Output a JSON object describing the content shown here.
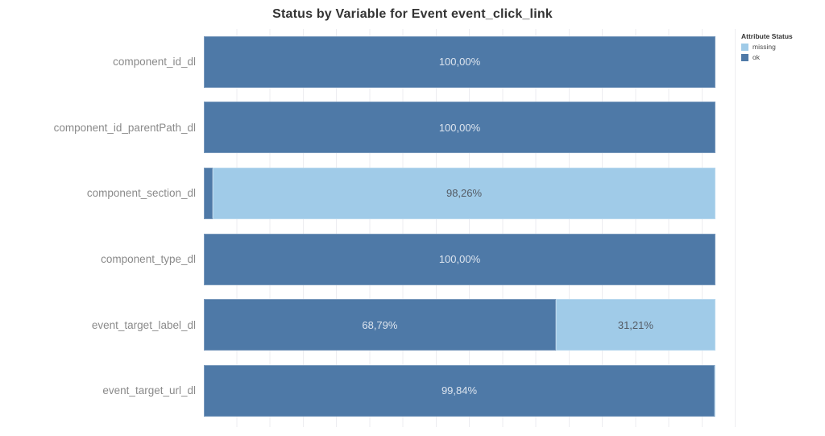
{
  "title": "Status by Variable for Event event_click_link",
  "legend": {
    "title": "Attribute Status",
    "items": [
      {
        "label": "missing",
        "color": "#a0cbe8"
      },
      {
        "label": "ok",
        "color": "#4e79a7"
      }
    ]
  },
  "chart_data": {
    "type": "bar",
    "orientation": "horizontal",
    "stacked": true,
    "title": "Status by Variable for Event event_click_link",
    "xlim": [
      0,
      100
    ],
    "grid": "faint-vertical-lines",
    "legend_position": "top-right",
    "value_format": "percent with comma decimal separator",
    "colors": {
      "ok": "#4e79a7",
      "missing": "#a0cbe8"
    },
    "categories": [
      "component_id_dl",
      "component_id_parentPath_dl",
      "component_section_dl",
      "component_type_dl",
      "event_target_label_dl",
      "event_target_url_dl"
    ],
    "series": [
      {
        "name": "ok",
        "color": "#4e79a7",
        "values": [
          100.0,
          100.0,
          1.74,
          100.0,
          68.79,
          99.84
        ]
      },
      {
        "name": "missing",
        "color": "#a0cbe8",
        "values": [
          0.0,
          0.0,
          98.26,
          0.0,
          31.21,
          0.16
        ]
      }
    ],
    "rows": [
      {
        "category": "component_id_dl",
        "segments": [
          {
            "status": "ok",
            "pct": 100.0,
            "label": "100,00%"
          }
        ]
      },
      {
        "category": "component_id_parentPath_dl",
        "segments": [
          {
            "status": "ok",
            "pct": 100.0,
            "label": "100,00%"
          }
        ]
      },
      {
        "category": "component_section_dl",
        "segments": [
          {
            "status": "ok",
            "pct": 1.74,
            "label": ""
          },
          {
            "status": "missing",
            "pct": 98.26,
            "label": "98,26%"
          }
        ]
      },
      {
        "category": "component_type_dl",
        "segments": [
          {
            "status": "ok",
            "pct": 100.0,
            "label": "100,00%"
          }
        ]
      },
      {
        "category": "event_target_label_dl",
        "segments": [
          {
            "status": "ok",
            "pct": 68.79,
            "label": "68,79%"
          },
          {
            "status": "missing",
            "pct": 31.21,
            "label": "31,21%"
          }
        ]
      },
      {
        "category": "event_target_url_dl",
        "segments": [
          {
            "status": "ok",
            "pct": 99.84,
            "label": "99,84%"
          },
          {
            "status": "missing",
            "pct": 0.16,
            "label": ""
          }
        ]
      }
    ]
  }
}
